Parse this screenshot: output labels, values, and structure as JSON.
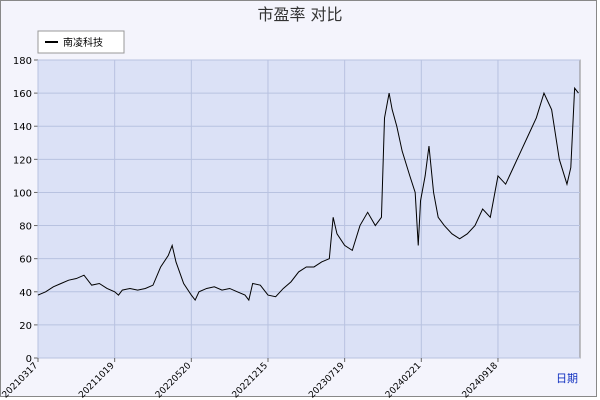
{
  "chart_data": {
    "type": "line",
    "title": "市盈率  对比",
    "x_label": "日期",
    "series": [
      {
        "name": "南凌科技",
        "color": "#000000",
        "x": [
          0,
          10,
          20,
          30,
          40,
          50,
          60,
          70,
          80,
          90,
          100,
          105,
          110,
          120,
          130,
          140,
          150,
          160,
          170,
          175,
          180,
          190,
          200,
          205,
          210,
          220,
          230,
          240,
          250,
          260,
          270,
          275,
          280,
          290,
          300,
          310,
          320,
          330,
          340,
          350,
          360,
          370,
          380,
          385,
          390,
          400,
          410,
          420,
          430,
          440,
          448,
          452,
          458,
          462,
          468,
          475,
          485,
          492,
          496,
          499,
          505,
          510,
          516,
          522,
          530,
          540,
          550,
          560,
          570,
          580,
          590,
          600,
          610,
          615,
          620,
          630,
          640,
          650,
          660,
          670,
          680,
          690,
          695,
          700,
          705
        ],
        "values": [
          38,
          40,
          43,
          45,
          47,
          48,
          50,
          44,
          45,
          42,
          40,
          38,
          41,
          42,
          41,
          42,
          44,
          55,
          62,
          68,
          58,
          45,
          38,
          35,
          40,
          42,
          43,
          41,
          42,
          40,
          38,
          35,
          45,
          44,
          38,
          37,
          42,
          46,
          52,
          55,
          55,
          58,
          60,
          85,
          75,
          68,
          65,
          80,
          88,
          80,
          85,
          145,
          160,
          150,
          140,
          125,
          110,
          100,
          68,
          95,
          110,
          128,
          100,
          85,
          80,
          75,
          72,
          75,
          80,
          90,
          85,
          110,
          105,
          110,
          115,
          125,
          135,
          145,
          160,
          150,
          120,
          105,
          115,
          163,
          160
        ]
      }
    ],
    "xlim": [
      0,
      707
    ],
    "xticks": [
      {
        "value": 0,
        "label": "20210317"
      },
      {
        "value": 100,
        "label": "20211019"
      },
      {
        "value": 200,
        "label": "20220520"
      },
      {
        "value": 300,
        "label": "20221215"
      },
      {
        "value": 400,
        "label": "20230719"
      },
      {
        "value": 500,
        "label": "20240221"
      },
      {
        "value": 600,
        "label": "20240918"
      }
    ],
    "ylim": [
      0,
      180
    ],
    "yticks": [
      0,
      20,
      40,
      60,
      80,
      100,
      120,
      140,
      160,
      180
    ],
    "grid": true
  }
}
